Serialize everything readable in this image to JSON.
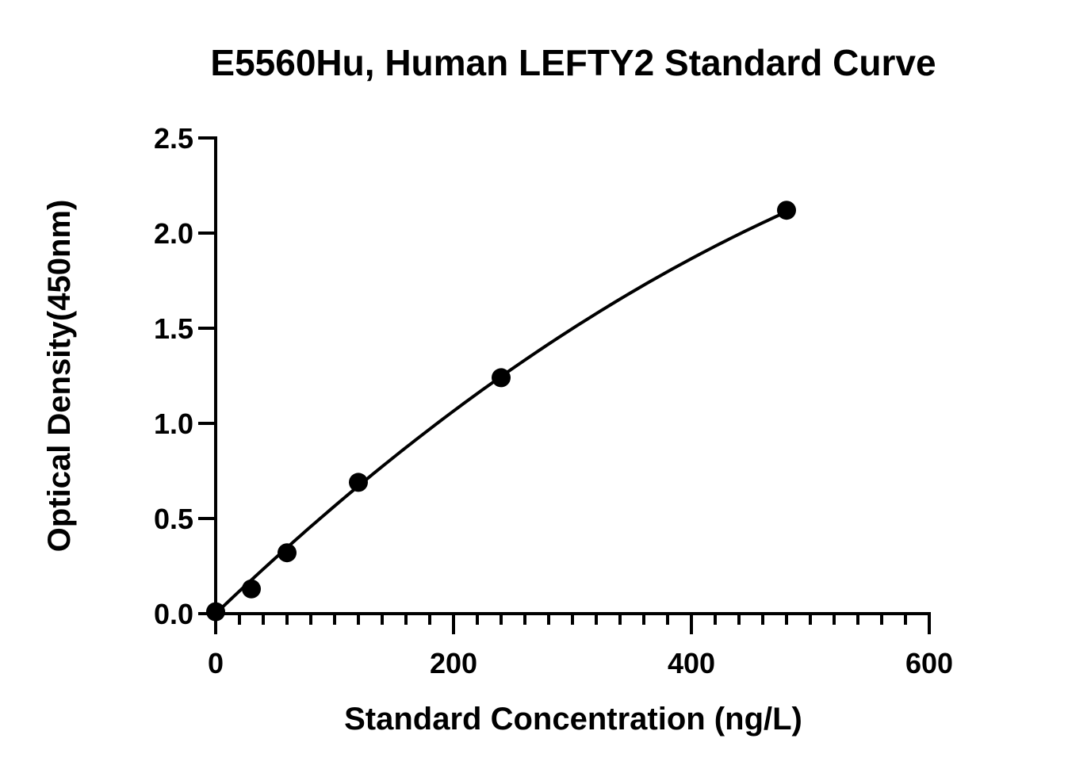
{
  "chart_data": {
    "type": "scatter",
    "title": "E5560Hu, Human LEFTY2 Standard Curve",
    "xlabel": "Standard Concentration (ng/L)",
    "ylabel": "Optical Density(450nm)",
    "xlim": [
      0,
      600
    ],
    "ylim": [
      0,
      2.5
    ],
    "x_ticks": [
      0,
      200,
      400,
      600
    ],
    "x_tick_labels": [
      "0",
      "200",
      "400",
      "600"
    ],
    "x_minor_step": 20,
    "y_ticks": [
      0,
      0.5,
      1.0,
      1.5,
      2.0,
      2.5
    ],
    "y_tick_labels": [
      "0.0",
      "0.5",
      "1.0",
      "1.5",
      "2.0",
      "2.5"
    ],
    "grid": false,
    "fit": "quadratic",
    "fit_coefficients": [
      0,
      0.005984,
      -3.3e-06
    ],
    "series": [
      {
        "x": [
          0,
          30,
          60,
          120,
          240,
          480
        ],
        "y": [
          0.01,
          0.13,
          0.32,
          0.69,
          1.24,
          2.12
        ]
      }
    ]
  }
}
